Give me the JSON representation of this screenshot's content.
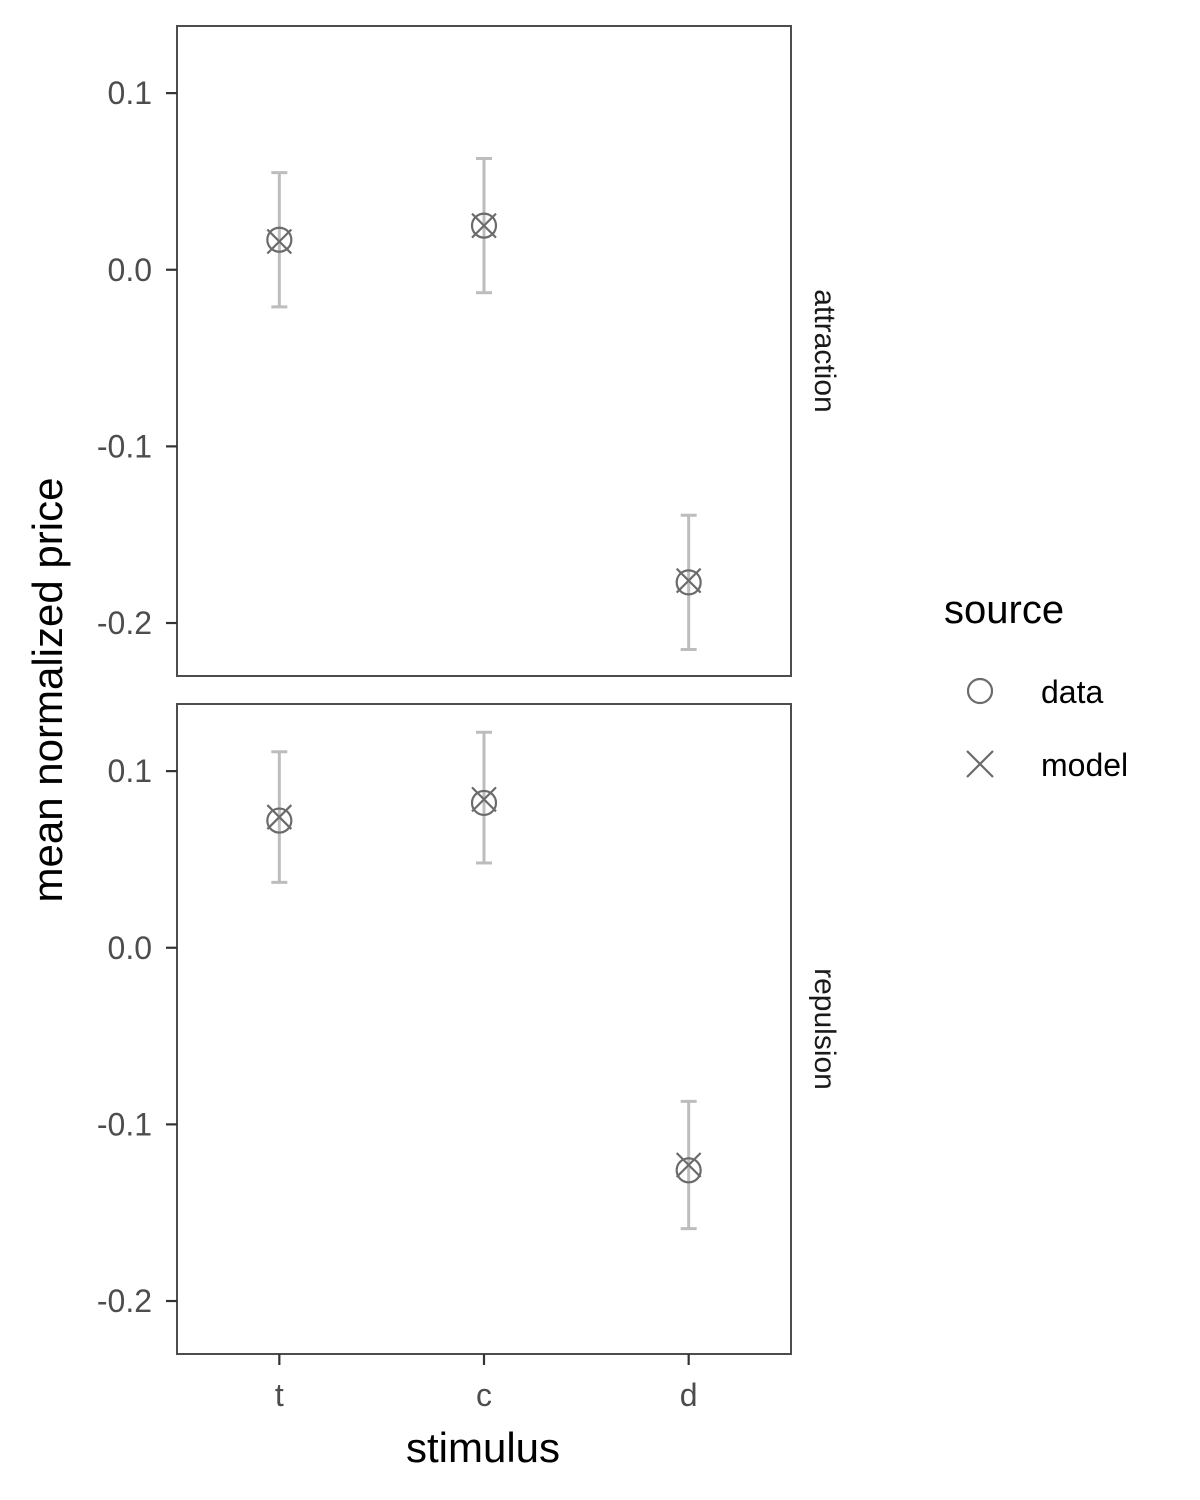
{
  "chart_data": {
    "type": "scatter",
    "xlabel": "stimulus",
    "ylabel": "mean normalized price",
    "categories": [
      "t",
      "c",
      "d"
    ],
    "ylim": [
      -0.23,
      0.138
    ],
    "yticks": [
      0.1,
      0.0,
      -0.1,
      -0.2
    ],
    "ytick_labels": [
      "0.1",
      "0.0",
      "-0.1",
      "-0.2"
    ],
    "grid": false,
    "legend": {
      "title": "source",
      "placement": "right",
      "entries": [
        {
          "label": "data",
          "shape": "circle"
        },
        {
          "label": "model",
          "shape": "cross"
        }
      ]
    },
    "colors": {
      "marker": "#6b6b6b",
      "errorbar": "#bdbdbd",
      "panel_border": "#4d4d4d"
    },
    "panels": [
      {
        "label": "attraction",
        "series": [
          {
            "name": "data",
            "values": [
              0.017,
              0.025,
              -0.177
            ],
            "error_low": [
              -0.021,
              -0.013,
              -0.215
            ],
            "error_high": [
              0.055,
              0.063,
              -0.139
            ]
          },
          {
            "name": "model",
            "values": [
              0.016,
              0.025,
              -0.176
            ]
          }
        ]
      },
      {
        "label": "repulsion",
        "series": [
          {
            "name": "data",
            "values": [
              0.072,
              0.082,
              -0.126
            ],
            "error_low": [
              0.037,
              0.048,
              -0.159
            ],
            "error_high": [
              0.111,
              0.122,
              -0.087
            ]
          },
          {
            "name": "model",
            "values": [
              0.074,
              0.084,
              -0.123
            ]
          }
        ]
      }
    ]
  }
}
